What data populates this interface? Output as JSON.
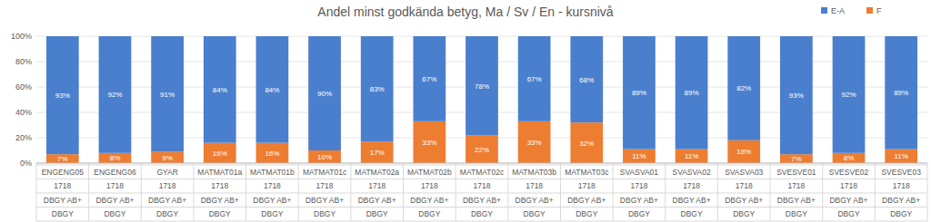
{
  "chart_data": {
    "type": "bar",
    "title": "Andel minst godkända betyg, Ma / Sv / En - kursnivå",
    "categories": [
      [
        "ENGENG05",
        "1718",
        "DBGY AB+",
        "DBGY"
      ],
      [
        "ENGENG06",
        "1718",
        "DBGY AB+",
        "DBGY"
      ],
      [
        "GYAR",
        "1718",
        "DBGY AB+",
        "DBGY"
      ],
      [
        "MATMAT01a",
        "1718",
        "DBGY AB+",
        "DBGY"
      ],
      [
        "MATMAT01b",
        "1718",
        "DBGY AB+",
        "DBGY"
      ],
      [
        "MATMAT01c",
        "1718",
        "DBGY AB+",
        "DBGY"
      ],
      [
        "MATMAT02a",
        "1718",
        "DBGY AB+",
        "DBGY"
      ],
      [
        "MATMAT02b",
        "1718",
        "DBGY AB+",
        "DBGY"
      ],
      [
        "MATMAT02c",
        "1718",
        "DBGY AB+",
        "DBGY"
      ],
      [
        "MATMAT03b",
        "1718",
        "DBGY AB+",
        "DBGY"
      ],
      [
        "MATMAT03c",
        "1718",
        "DBGY AB+",
        "DBGY"
      ],
      [
        "SVASVA01",
        "1718",
        "DBGY AB+",
        "DBGY"
      ],
      [
        "SVASVA02",
        "1718",
        "DBGY AB+",
        "DBGY"
      ],
      [
        "SVASVA03",
        "1718",
        "DBGY AB+",
        "DBGY"
      ],
      [
        "SVESVE01",
        "1718",
        "DBGY AB+",
        "DBGY"
      ],
      [
        "SVESVE02",
        "1718",
        "DBGY AB+",
        "DBGY"
      ],
      [
        "SVESVE03",
        "1718",
        "DBGY AB+",
        "DBGY"
      ]
    ],
    "series": [
      {
        "name": "F",
        "color": "#ed7d31",
        "values": [
          7,
          8,
          9,
          16,
          16,
          10,
          17,
          33,
          22,
          33,
          32,
          11,
          11,
          18,
          7,
          8,
          11
        ],
        "value_labels": [
          "7%",
          "8%",
          "9%",
          "16%",
          "16%",
          "10%",
          "17%",
          "33%",
          "22%",
          "33%",
          "32%",
          "11%",
          "11%",
          "18%",
          "7%",
          "8%",
          "11%"
        ]
      },
      {
        "name": "E-A",
        "color": "#4a7fce",
        "values": [
          93,
          92,
          91,
          84,
          84,
          90,
          83,
          67,
          78,
          67,
          68,
          89,
          89,
          82,
          93,
          92,
          89
        ],
        "value_labels": [
          "93%",
          "92%",
          "91%",
          "84%",
          "84%",
          "90%",
          "83%",
          "67%",
          "78%",
          "67%",
          "68%",
          "89%",
          "89%",
          "82%",
          "93%",
          "92%",
          "89%"
        ]
      }
    ],
    "ylim": [
      0,
      100
    ],
    "yticks": [
      {
        "value": 0,
        "label": "0%"
      },
      {
        "value": 20,
        "label": "20%"
      },
      {
        "value": 40,
        "label": "40%"
      },
      {
        "value": 60,
        "label": "60%"
      },
      {
        "value": 80,
        "label": "80%"
      },
      {
        "value": 100,
        "label": "100%"
      }
    ],
    "stacked": true,
    "data_labels": true,
    "grid": true,
    "legend": "top-right"
  }
}
